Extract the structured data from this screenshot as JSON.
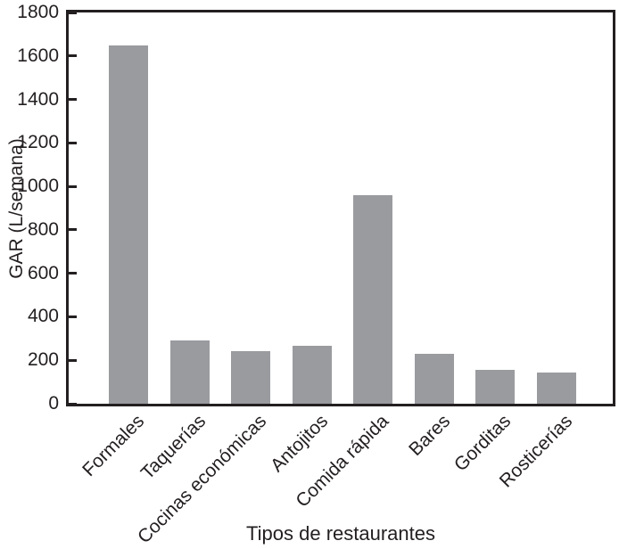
{
  "chart_data": {
    "type": "bar",
    "categories": [
      "Formales",
      "Taquerías",
      "Cocinas económicas",
      "Antojitos",
      "Comida rápida",
      "Bares",
      "Gorditas",
      "Rosticerías"
    ],
    "values": [
      1650,
      290,
      240,
      265,
      960,
      230,
      155,
      145
    ],
    "xlabel": "Tipos de restaurantes",
    "ylabel": "GAR (L/semana)",
    "ylim": [
      0,
      1800
    ],
    "yticks": [
      0,
      200,
      400,
      600,
      800,
      1000,
      1200,
      1400,
      1600,
      1800
    ],
    "bar_color": "#9a9b9f",
    "axis_color": "#231f20",
    "background_color": "#ffffff",
    "grid": false,
    "legend_position": "none"
  }
}
